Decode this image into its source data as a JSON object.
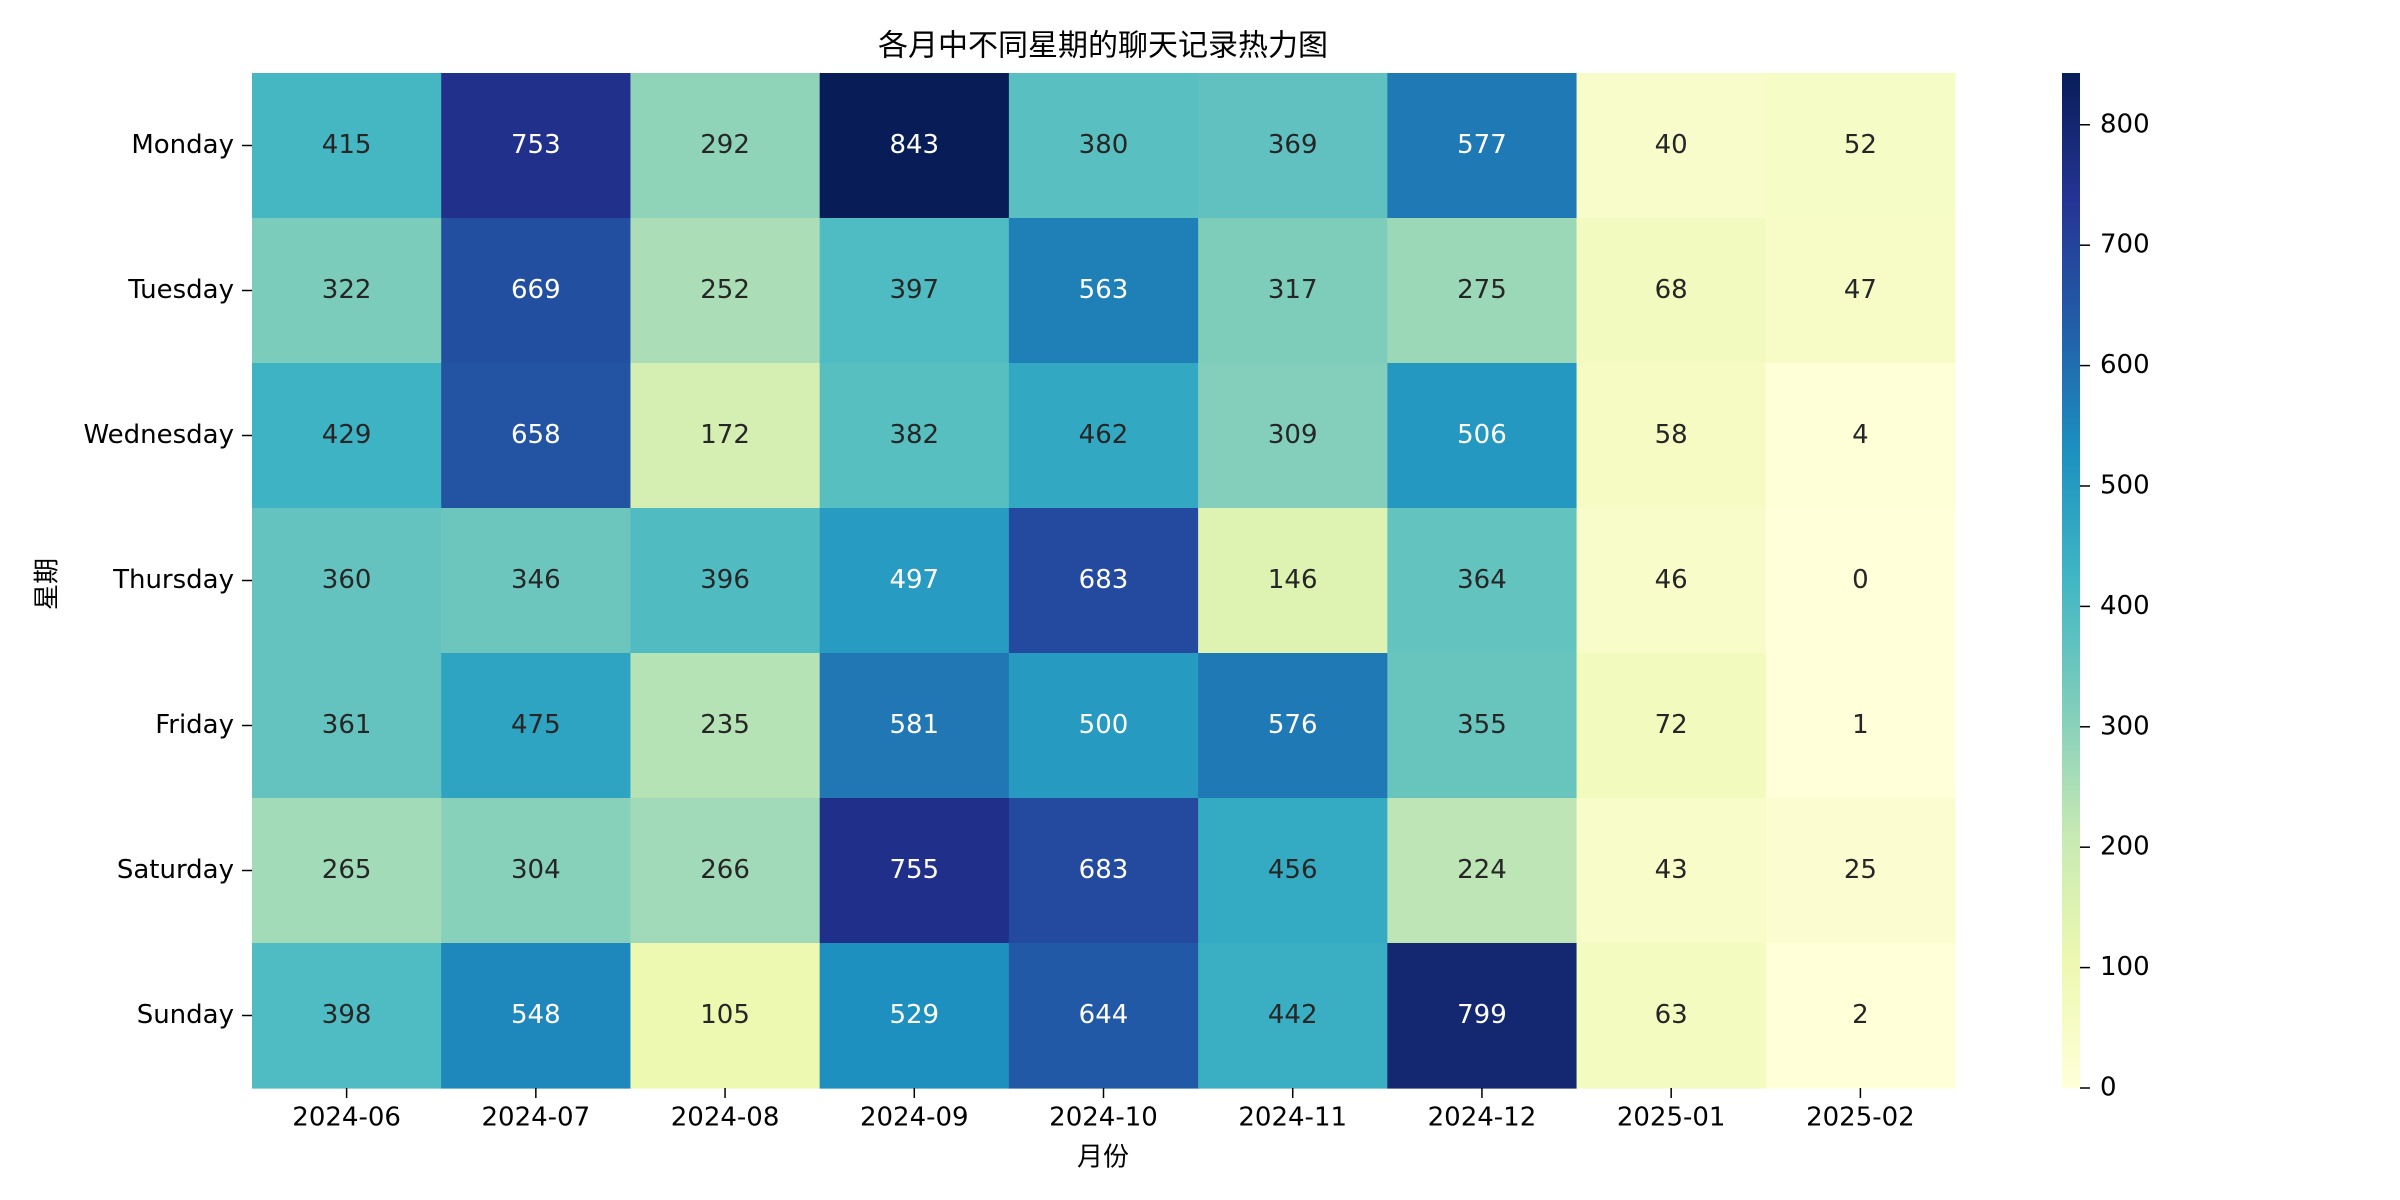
{
  "chart_data": {
    "type": "heatmap",
    "title": "各月中不同星期的聊天记录热力图",
    "xlabel": "月份",
    "ylabel": "星期",
    "x_categories": [
      "2024-06",
      "2024-07",
      "2024-08",
      "2024-09",
      "2024-10",
      "2024-11",
      "2024-12",
      "2025-01",
      "2025-02"
    ],
    "y_categories": [
      "Monday",
      "Tuesday",
      "Wednesday",
      "Thursday",
      "Friday",
      "Saturday",
      "Sunday"
    ],
    "values": [
      [
        415,
        753,
        292,
        843,
        380,
        369,
        577,
        40,
        52
      ],
      [
        322,
        669,
        252,
        397,
        563,
        317,
        275,
        68,
        47
      ],
      [
        429,
        658,
        172,
        382,
        462,
        309,
        506,
        58,
        4
      ],
      [
        360,
        346,
        396,
        497,
        683,
        146,
        364,
        46,
        0
      ],
      [
        361,
        475,
        235,
        581,
        500,
        576,
        355,
        72,
        1
      ],
      [
        265,
        304,
        266,
        755,
        683,
        456,
        224,
        43,
        25
      ],
      [
        398,
        548,
        105,
        529,
        644,
        442,
        799,
        63,
        2
      ]
    ],
    "colormap": "YlGnBu",
    "color_range": [
      0,
      843
    ],
    "colorbar_ticks": [
      0,
      100,
      200,
      300,
      400,
      500,
      600,
      700,
      800
    ],
    "annotations": true,
    "grid": false,
    "colorbar_position": "right"
  }
}
